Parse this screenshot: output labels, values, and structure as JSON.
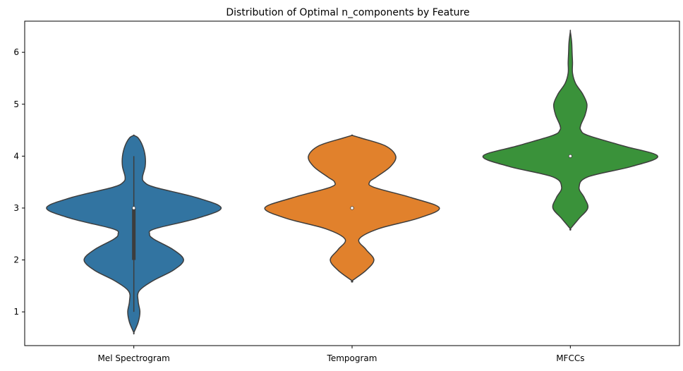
{
  "chart_data": {
    "type": "violin",
    "title": "Distribution of Optimal n_components by Feature",
    "xlabel": "",
    "ylabel": "",
    "categories": [
      "Mel Spectrogram",
      "Tempogram",
      "MFCCs"
    ],
    "ylim": [
      0.35,
      6.6
    ],
    "yticks": [
      1,
      2,
      3,
      4,
      5,
      6
    ],
    "grid": false,
    "series": [
      {
        "category": "Mel Spectrogram",
        "color": "#3274a1",
        "median": 3,
        "q1": 2,
        "q3": 3,
        "whisker_low": 1,
        "whisker_high": 4,
        "y_range": [
          0.6,
          4.4
        ],
        "density_profile": [
          [
            0.6,
            0.0
          ],
          [
            0.8,
            0.05
          ],
          [
            1.0,
            0.07
          ],
          [
            1.2,
            0.05
          ],
          [
            1.4,
            0.06
          ],
          [
            1.6,
            0.22
          ],
          [
            1.8,
            0.45
          ],
          [
            2.0,
            0.57
          ],
          [
            2.2,
            0.45
          ],
          [
            2.4,
            0.23
          ],
          [
            2.5,
            0.18
          ],
          [
            2.6,
            0.24
          ],
          [
            2.8,
            0.72
          ],
          [
            3.0,
            1.0
          ],
          [
            3.2,
            0.72
          ],
          [
            3.4,
            0.24
          ],
          [
            3.5,
            0.12
          ],
          [
            3.6,
            0.1
          ],
          [
            3.8,
            0.13
          ],
          [
            4.0,
            0.13
          ],
          [
            4.2,
            0.1
          ],
          [
            4.35,
            0.05
          ],
          [
            4.4,
            0.0
          ]
        ]
      },
      {
        "category": "Tempogram",
        "color": "#e1812c",
        "median": 3,
        "q1": 3,
        "q3": 3,
        "whisker_low": 3,
        "whisker_high": 3,
        "y_range": [
          1.6,
          4.4
        ],
        "density_profile": [
          [
            1.6,
            0.0
          ],
          [
            1.8,
            0.16
          ],
          [
            2.0,
            0.25
          ],
          [
            2.2,
            0.16
          ],
          [
            2.4,
            0.08
          ],
          [
            2.6,
            0.3
          ],
          [
            2.8,
            0.75
          ],
          [
            3.0,
            1.0
          ],
          [
            3.2,
            0.68
          ],
          [
            3.4,
            0.25
          ],
          [
            3.5,
            0.2
          ],
          [
            3.6,
            0.28
          ],
          [
            3.8,
            0.44
          ],
          [
            4.0,
            0.5
          ],
          [
            4.2,
            0.38
          ],
          [
            4.35,
            0.1
          ],
          [
            4.4,
            0.0
          ]
        ]
      },
      {
        "category": "MFCCs",
        "color": "#3a923a",
        "median": 4,
        "q1": 4,
        "q3": 4,
        "whisker_low": 4,
        "whisker_high": 4,
        "y_range": [
          2.6,
          6.4
        ],
        "density_profile": [
          [
            2.6,
            0.0
          ],
          [
            2.8,
            0.1
          ],
          [
            3.0,
            0.2
          ],
          [
            3.2,
            0.16
          ],
          [
            3.4,
            0.1
          ],
          [
            3.6,
            0.2
          ],
          [
            3.8,
            0.7
          ],
          [
            4.0,
            1.0
          ],
          [
            4.2,
            0.6
          ],
          [
            4.4,
            0.2
          ],
          [
            4.5,
            0.12
          ],
          [
            4.6,
            0.12
          ],
          [
            4.8,
            0.17
          ],
          [
            5.0,
            0.19
          ],
          [
            5.2,
            0.14
          ],
          [
            5.4,
            0.06
          ],
          [
            5.6,
            0.025
          ],
          [
            5.8,
            0.025
          ],
          [
            6.0,
            0.02
          ],
          [
            6.2,
            0.015
          ],
          [
            6.4,
            0.0
          ]
        ]
      }
    ]
  }
}
